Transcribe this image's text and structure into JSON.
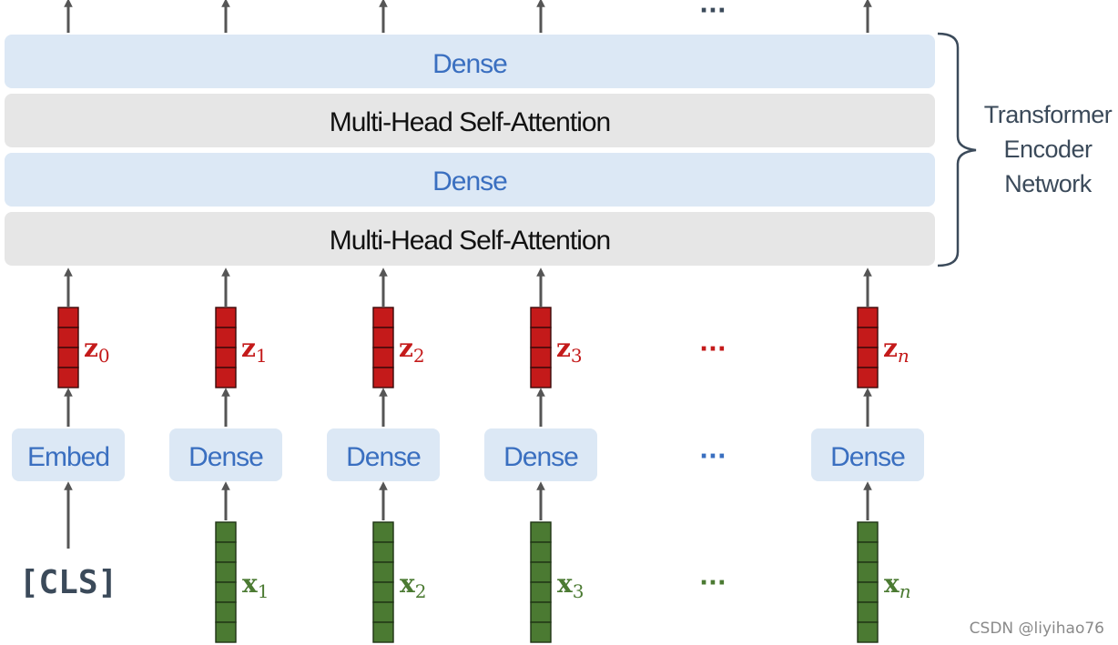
{
  "colors": {
    "dense_fill": "#dce8f5",
    "dense_text": "#3a6fc0",
    "attention_fill": "#e6e6e6",
    "attention_text": "#111111",
    "z_vector": "#c41a1a",
    "x_vector": "#4b7a32",
    "arrow": "#555555",
    "brace": "#3b4a5a"
  },
  "encoder": {
    "layers": [
      {
        "label": "Dense",
        "kind": "dense"
      },
      {
        "label": "Multi-Head Self-Attention",
        "kind": "attention"
      },
      {
        "label": "Dense",
        "kind": "dense"
      },
      {
        "label": "Multi-Head Self-Attention",
        "kind": "attention"
      }
    ],
    "brace_label_lines": [
      "Transformer",
      "Encoder",
      "Network"
    ],
    "top_ellipsis": "···"
  },
  "columns": [
    {
      "z_base": "z",
      "z_sub": "0",
      "box_label": "Embed",
      "input": "[CLS]"
    },
    {
      "z_base": "z",
      "z_sub": "1",
      "box_label": "Dense",
      "x_base": "x",
      "x_sub": "1"
    },
    {
      "z_base": "z",
      "z_sub": "2",
      "box_label": "Dense",
      "x_base": "x",
      "x_sub": "2"
    },
    {
      "z_base": "z",
      "z_sub": "3",
      "box_label": "Dense",
      "x_base": "x",
      "x_sub": "3"
    },
    {
      "z_base": "z",
      "z_sub": "n",
      "box_label": "Dense",
      "x_base": "x",
      "x_sub": "n"
    }
  ],
  "ellipsis": {
    "z_row": "···",
    "box_row": "···",
    "x_row": "···"
  },
  "watermark": "CSDN @liyihao76"
}
